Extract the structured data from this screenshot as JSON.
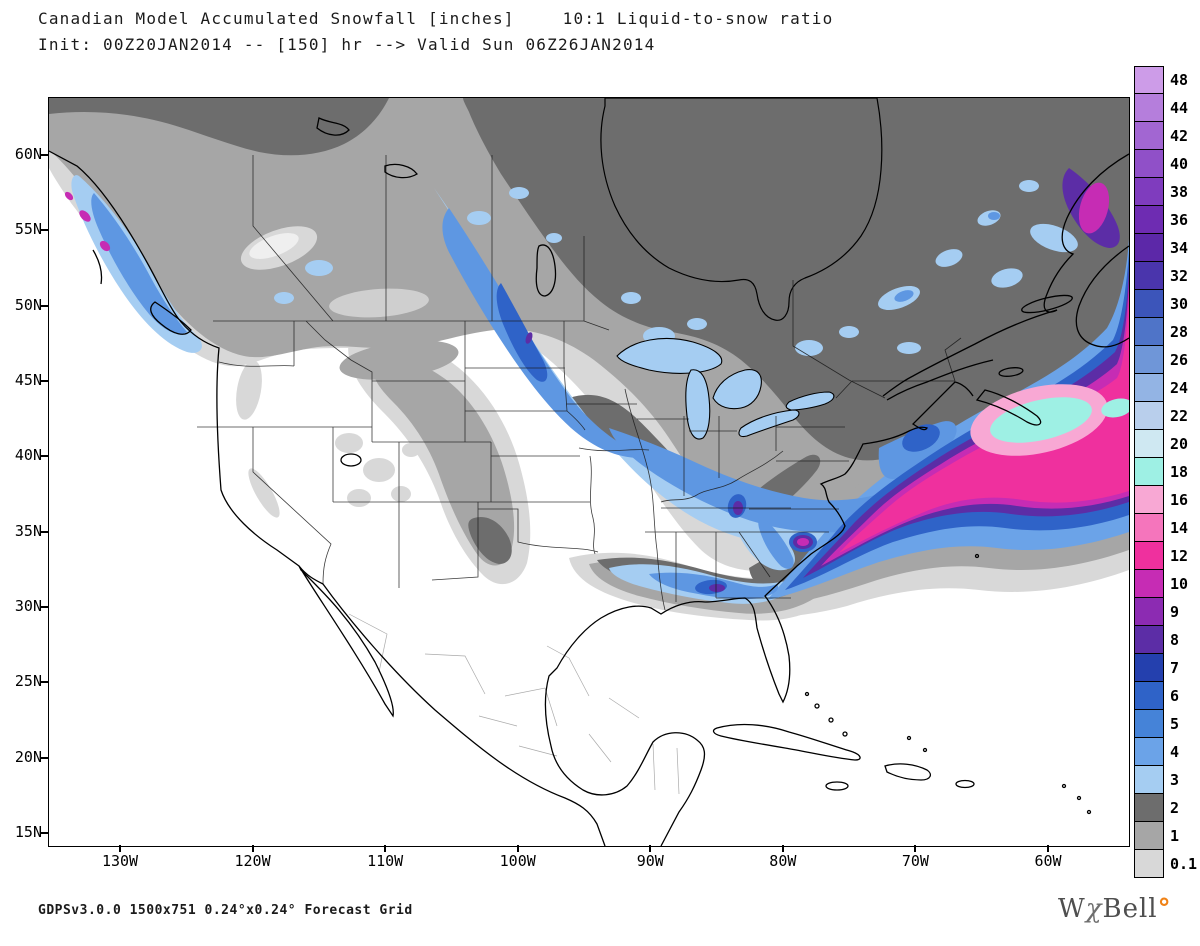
{
  "header": {
    "title": "Canadian Model Accumulated Snowfall [inches]",
    "subtitle_right": "10:1 Liquid-to-snow ratio",
    "init_line": "Init: 00Z20JAN2014 -- [150] hr --> Valid Sun 06Z26JAN2014"
  },
  "axes": {
    "lat": [
      "60N",
      "55N",
      "50N",
      "45N",
      "40N",
      "35N",
      "30N",
      "25N",
      "20N",
      "15N"
    ],
    "lon": [
      "130W",
      "120W",
      "110W",
      "100W",
      "90W",
      "80W",
      "70W",
      "60W"
    ]
  },
  "legend": {
    "entries": [
      {
        "value": "48",
        "color": "#cd9ce8"
      },
      {
        "value": "44",
        "color": "#b57edc"
      },
      {
        "value": "42",
        "color": "#a266d2"
      },
      {
        "value": "40",
        "color": "#9050c8"
      },
      {
        "value": "38",
        "color": "#7f3cbe"
      },
      {
        "value": "36",
        "color": "#6e2cb2"
      },
      {
        "value": "34",
        "color": "#5c28a8"
      },
      {
        "value": "32",
        "color": "#4a35ac"
      },
      {
        "value": "30",
        "color": "#3c55ba"
      },
      {
        "value": "28",
        "color": "#4f74c8"
      },
      {
        "value": "26",
        "color": "#6f96d8"
      },
      {
        "value": "24",
        "color": "#93b4e4"
      },
      {
        "value": "22",
        "color": "#b9cfec"
      },
      {
        "value": "20",
        "color": "#cfe8f2"
      },
      {
        "value": "18",
        "color": "#9ef0e4"
      },
      {
        "value": "16",
        "color": "#f8a8d4"
      },
      {
        "value": "14",
        "color": "#f575bc"
      },
      {
        "value": "12",
        "color": "#ef309e"
      },
      {
        "value": "10",
        "color": "#c62cb4"
      },
      {
        "value": "9",
        "color": "#8c2bb2"
      },
      {
        "value": "8",
        "color": "#5c2da6"
      },
      {
        "value": "7",
        "color": "#2440ae"
      },
      {
        "value": "6",
        "color": "#2f63c8"
      },
      {
        "value": "5",
        "color": "#4583d8"
      },
      {
        "value": "4",
        "color": "#6ba3e8"
      },
      {
        "value": "3",
        "color": "#a5cdf2"
      },
      {
        "value": "2",
        "color": "#6d6d6d"
      },
      {
        "value": "1",
        "color": "#a6a6a6"
      },
      {
        "value": "0.1",
        "color": "#d8d8d8"
      }
    ]
  },
  "footer": {
    "left": "GDPSv3.0.0 1500x751 0.24°x0.24° Forecast Grid",
    "brand_w": "W",
    "brand_chi": "χ",
    "brand_rest": "Bell",
    "brand_degree": "°"
  },
  "colors": {
    "brand_degree": "#f08216",
    "map_border": "#000000"
  }
}
